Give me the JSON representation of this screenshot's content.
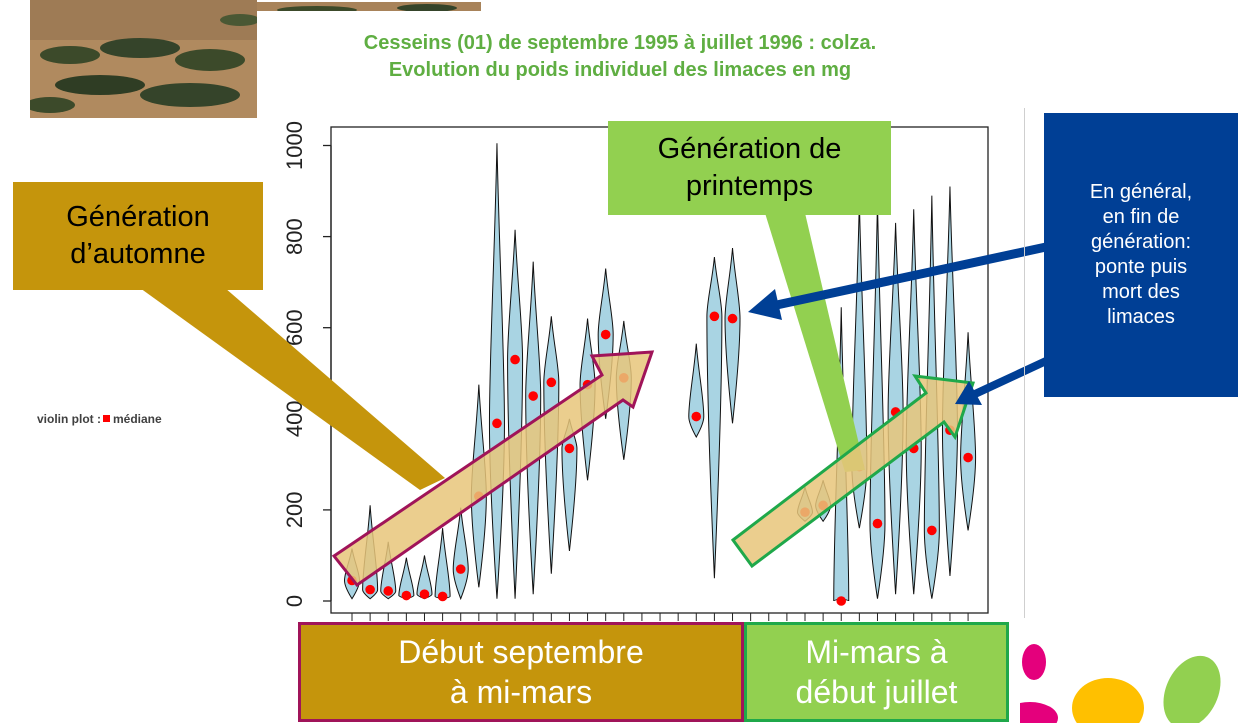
{
  "slide": {
    "title_line1": "Cesseins (01)  de septembre 1995 à juillet 1996 : colza.",
    "title_line2": "Evolution du poids individuel des limaces en mg",
    "legend_label": "violin plot :",
    "legend_median": "médiane",
    "callout_autumn": [
      "Génération",
      "d’automne"
    ],
    "callout_spring": [
      "Génération de",
      "printemps"
    ],
    "callout_end_of_generation": [
      "En général,",
      "en fin de",
      "génération:",
      "ponte puis",
      "mort des",
      "limaces"
    ],
    "period_left": [
      "Début septembre",
      "à mi-mars"
    ],
    "period_right": [
      "Mi-mars à",
      "début juillet"
    ]
  },
  "colors": {
    "title": "#5fae42",
    "violin_fill": "#a9d4e3",
    "median": "#ff0000",
    "autumn": "#c5950c",
    "spring": "#92d050",
    "blue": "#003f95",
    "arrow_fill": "#e8c57a",
    "arrow_left_border": "#a01459",
    "arrow_right_border": "#1fa84a"
  },
  "chart_data": {
    "type": "violin",
    "ylim": [
      0,
      1000
    ],
    "yticks": [
      0,
      200,
      400,
      600,
      800,
      1000
    ],
    "medians": [
      45,
      25,
      22,
      12,
      15,
      10,
      70,
      230,
      390,
      530,
      450,
      480,
      335,
      475,
      585,
      490,
      null,
      null,
      null,
      405,
      625,
      620,
      null,
      null,
      null,
      195,
      210,
      0,
      295,
      170,
      415,
      335,
      155,
      375,
      315
    ],
    "ranges": [
      [
        5,
        115
      ],
      [
        5,
        210
      ],
      [
        5,
        130
      ],
      [
        5,
        95
      ],
      [
        5,
        100
      ],
      [
        5,
        160
      ],
      [
        5,
        205
      ],
      [
        30,
        475
      ],
      [
        5,
        1005
      ],
      [
        5,
        815
      ],
      [
        15,
        745
      ],
      [
        60,
        625
      ],
      [
        110,
        400
      ],
      [
        265,
        620
      ],
      [
        400,
        730
      ],
      [
        310,
        615
      ],
      [
        null,
        null
      ],
      [
        null,
        null
      ],
      [
        null,
        null
      ],
      [
        360,
        565
      ],
      [
        50,
        755
      ],
      [
        390,
        775
      ],
      [
        null,
        null
      ],
      [
        null,
        null
      ],
      [
        null,
        null
      ],
      [
        175,
        250
      ],
      [
        175,
        265
      ],
      [
        5,
        645
      ],
      [
        160,
        880
      ],
      [
        5,
        880
      ],
      [
        15,
        830
      ],
      [
        15,
        860
      ],
      [
        5,
        890
      ],
      [
        55,
        910
      ],
      [
        155,
        590
      ]
    ]
  }
}
